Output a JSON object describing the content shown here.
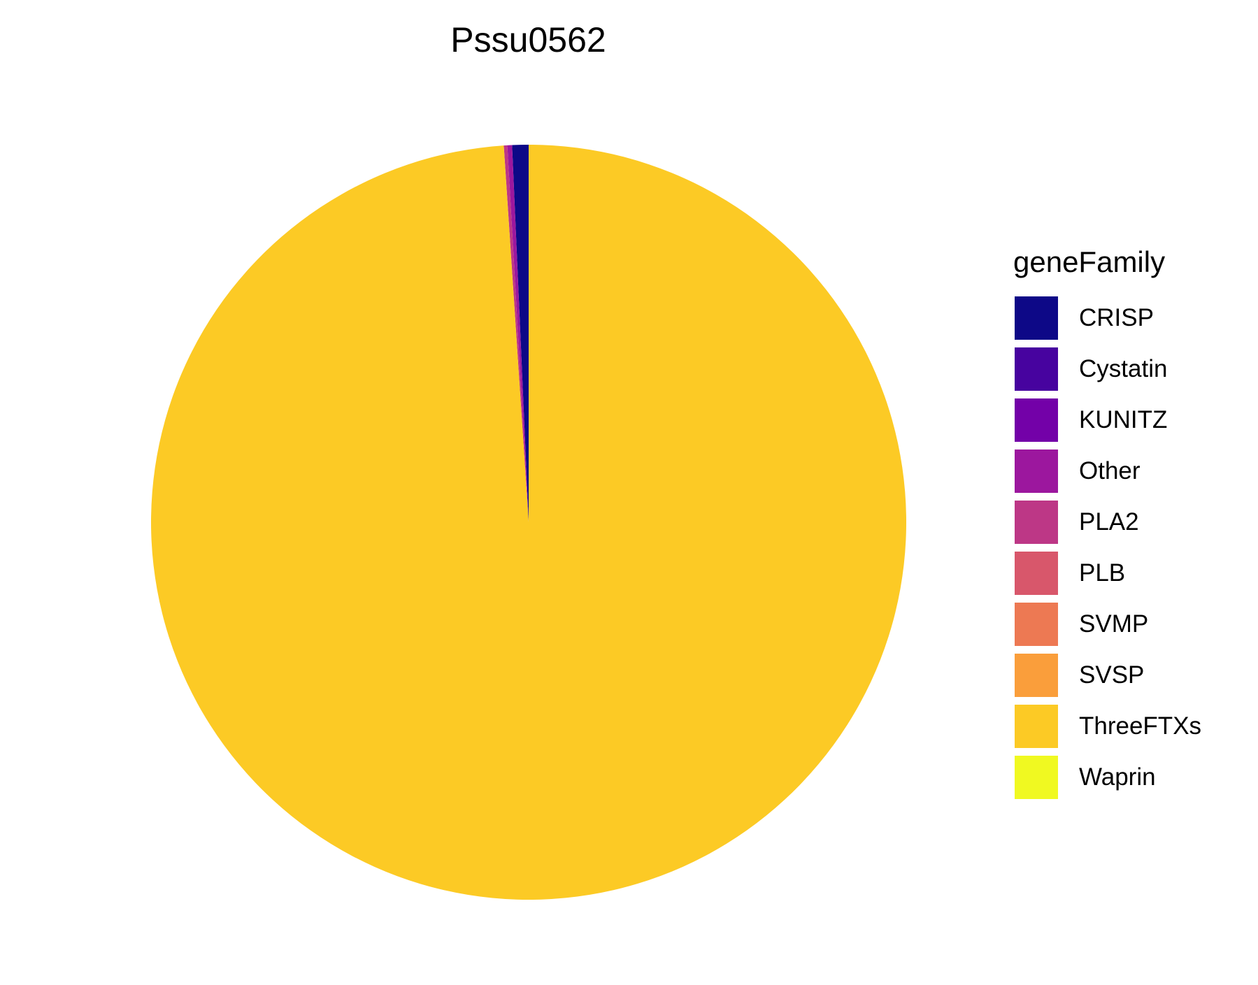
{
  "chart_data": {
    "type": "pie",
    "title": "Pssu0562",
    "legend_title": "geneFamily",
    "legend_position": "right",
    "slices": [
      {
        "label": "CRISP",
        "value": 0.7,
        "color": "#0D0887"
      },
      {
        "label": "Cystatin",
        "value": 0.0,
        "color": "#47039F"
      },
      {
        "label": "KUNITZ",
        "value": 0.0,
        "color": "#7301A8"
      },
      {
        "label": "Other",
        "value": 0.2,
        "color": "#9C179E"
      },
      {
        "label": "PLA2",
        "value": 0.15,
        "color": "#BD3786"
      },
      {
        "label": "PLB",
        "value": 0.0,
        "color": "#D8576B"
      },
      {
        "label": "SVMP",
        "value": 0.0,
        "color": "#ED7953"
      },
      {
        "label": "SVSP",
        "value": 0.0,
        "color": "#FA9E3B"
      },
      {
        "label": "ThreeFTXs",
        "value": 98.95,
        "color": "#FCCA25"
      },
      {
        "label": "Waprin",
        "value": 0.0,
        "color": "#F0F921"
      }
    ]
  }
}
